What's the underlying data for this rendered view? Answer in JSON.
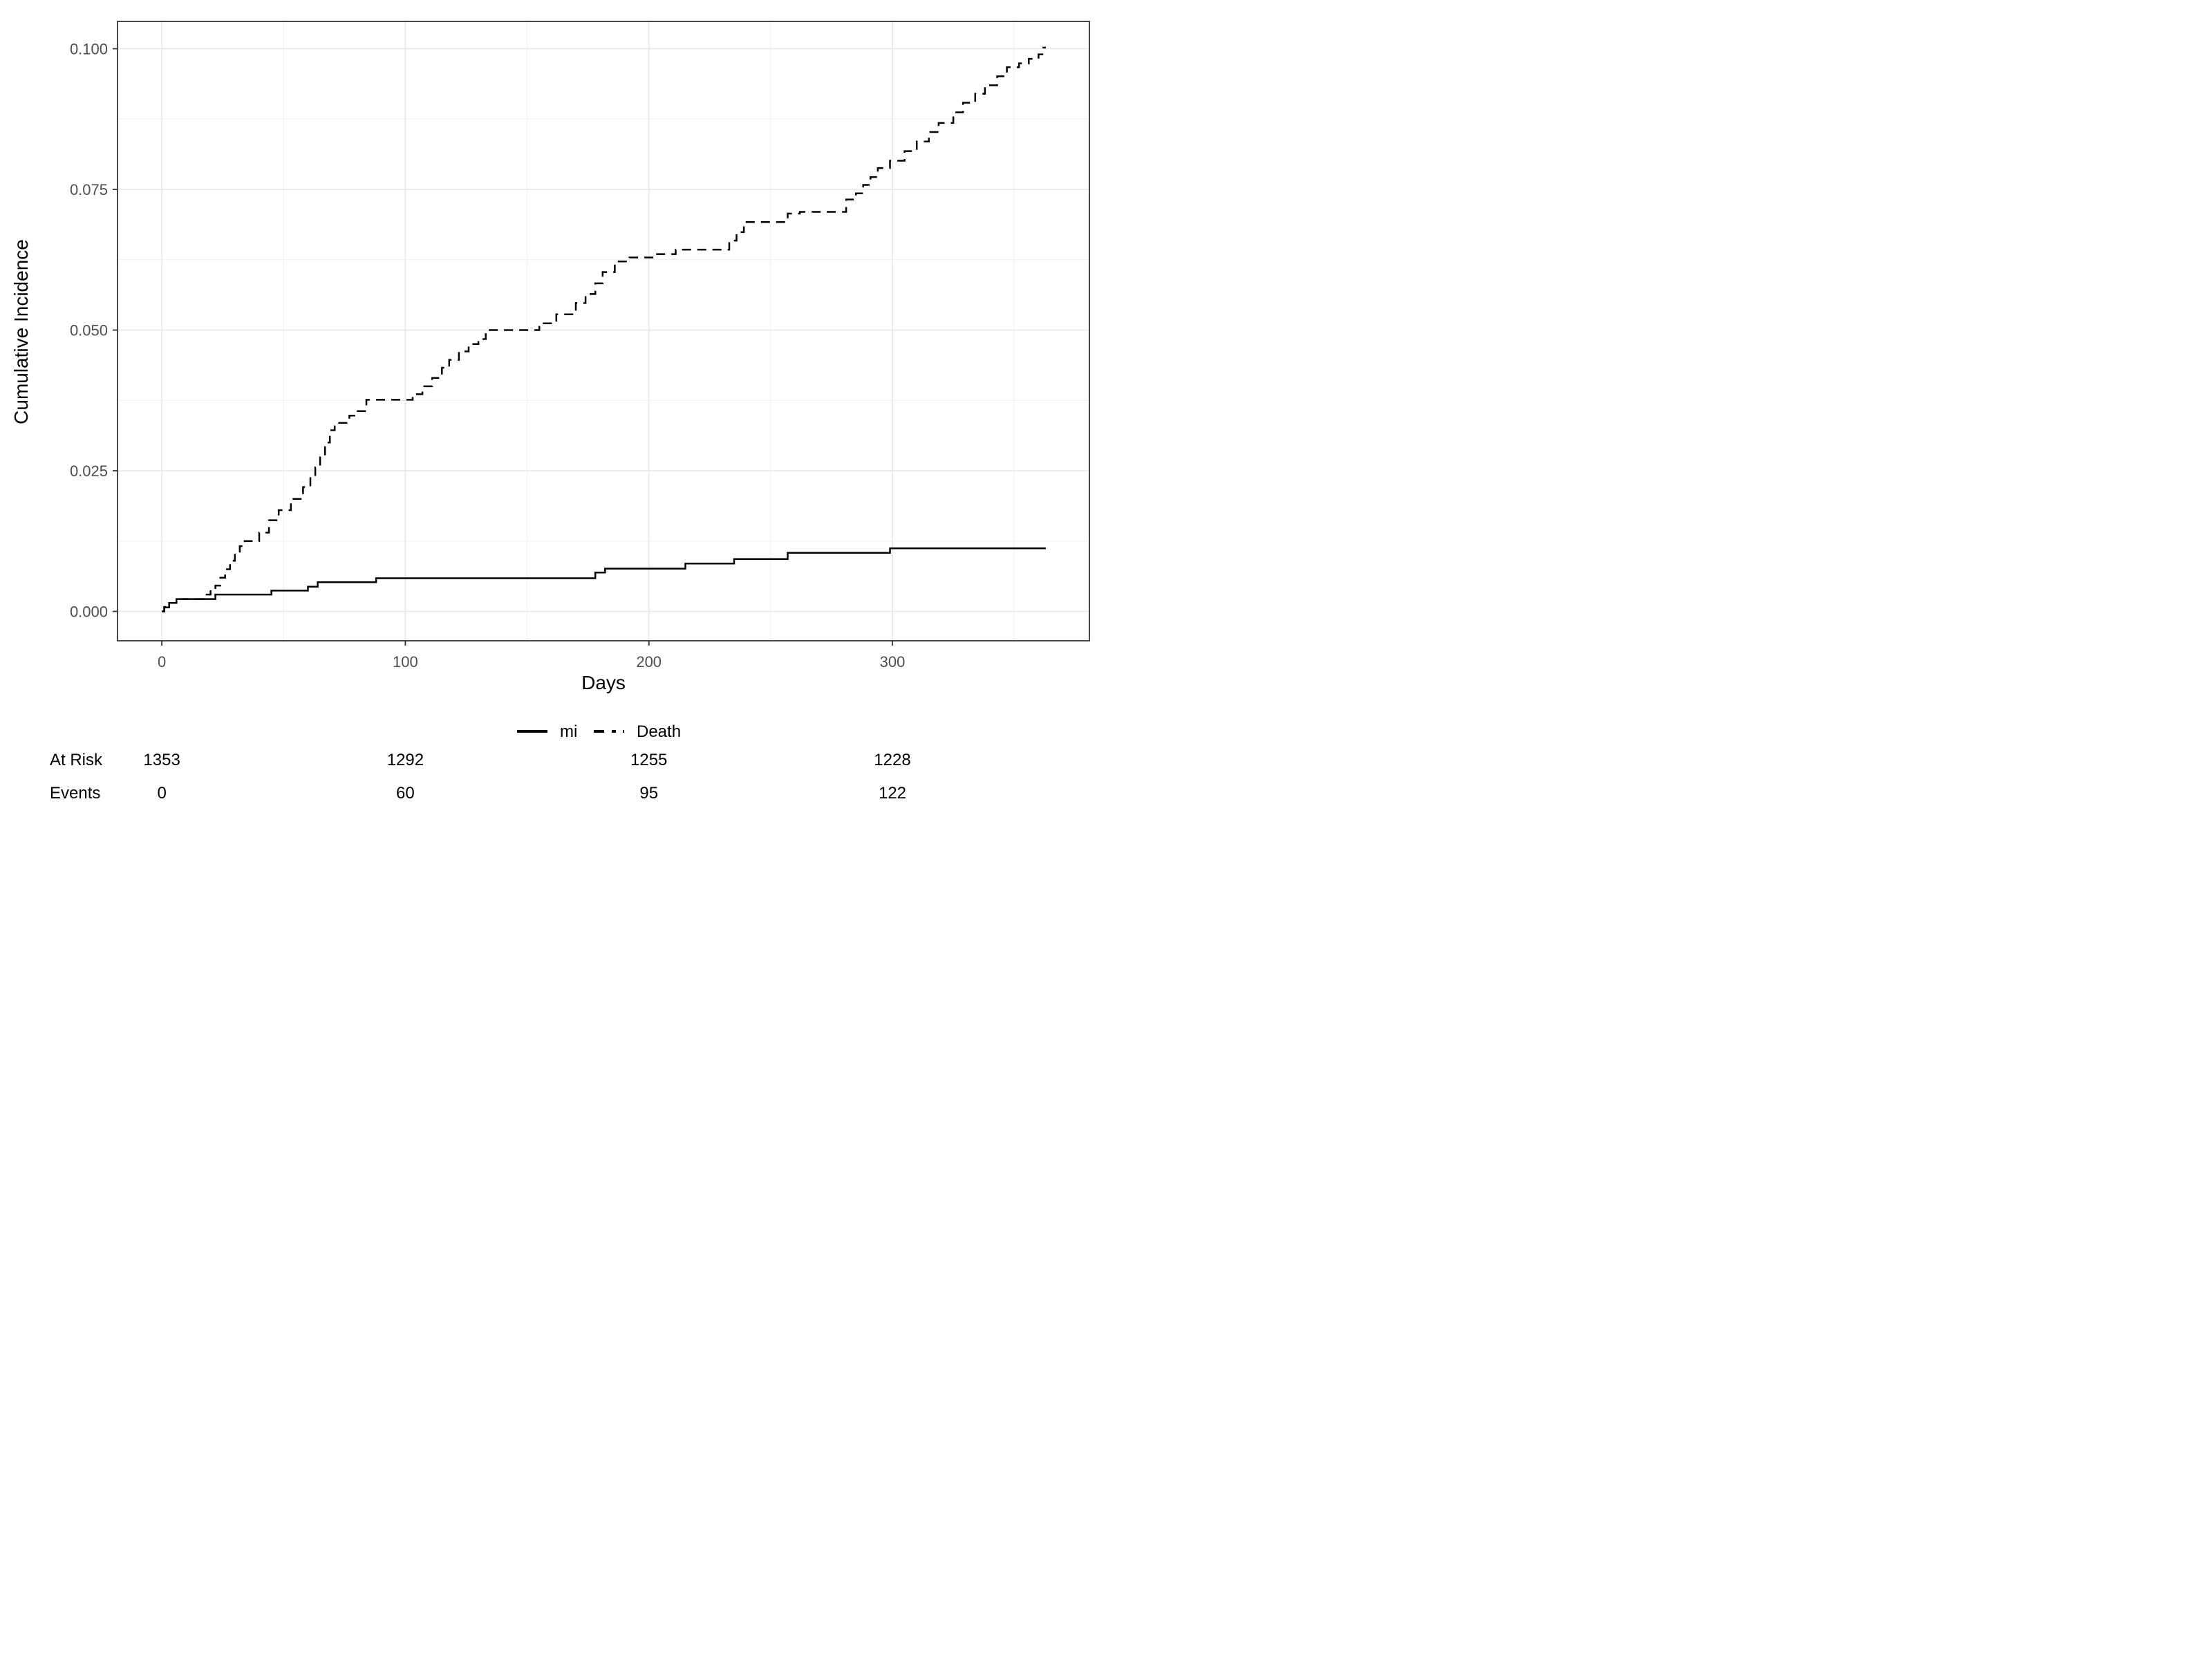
{
  "figure": {
    "y_axis_title": "Cumulative Incidence",
    "x_axis_title": "Days",
    "legend": {
      "items": [
        {
          "label": "mi",
          "linetype": "solid"
        },
        {
          "label": "Death",
          "linetype": "dashed"
        }
      ]
    },
    "risk_table": {
      "row_labels": {
        "at_risk": "At Risk",
        "events": "Events"
      },
      "times": [
        0,
        100,
        200,
        300
      ],
      "at_risk_values": [
        "1353",
        "1292",
        "1255",
        "1228"
      ],
      "events_values": [
        "0",
        "60",
        "95",
        "122"
      ]
    }
  },
  "chart_data": {
    "type": "line",
    "step": true,
    "title": "",
    "xlabel": "Days",
    "ylabel": "Cumulative Incidence",
    "x_ticks": [
      0,
      100,
      200,
      300
    ],
    "x_tick_labels": [
      "0",
      "100",
      "200",
      "300"
    ],
    "x_minor_ticks": [
      50,
      150,
      250,
      350
    ],
    "y_ticks": [
      0.0,
      0.025,
      0.05,
      0.075,
      0.1
    ],
    "y_tick_labels": [
      "0.000",
      "0.025",
      "0.050",
      "0.075",
      "0.100"
    ],
    "y_minor_ticks": [
      0.0125,
      0.0375,
      0.0625,
      0.0875
    ],
    "xlim": [
      -18.2,
      380.9
    ],
    "ylim": [
      -0.00522,
      0.10485
    ],
    "grid": true,
    "legend_position": "bottom",
    "series": [
      {
        "name": "mi",
        "linetype": "solid",
        "points": [
          [
            0,
            0
          ],
          [
            1,
            0.0007
          ],
          [
            3,
            0.0015
          ],
          [
            6,
            0.0022
          ],
          [
            22,
            0.003
          ],
          [
            45,
            0.0037
          ],
          [
            60,
            0.0044
          ],
          [
            64,
            0.0052
          ],
          [
            88,
            0.0059
          ],
          [
            178,
            0.0069
          ],
          [
            182,
            0.0076
          ],
          [
            215,
            0.0085
          ],
          [
            235,
            0.0093
          ],
          [
            257,
            0.0104
          ],
          [
            299,
            0.0112
          ],
          [
            363,
            0.0112
          ]
        ]
      },
      {
        "name": "Death",
        "linetype": "dashed",
        "points": [
          [
            0,
            0
          ],
          [
            1,
            0.0008
          ],
          [
            3,
            0.0015
          ],
          [
            6,
            0.0022
          ],
          [
            18,
            0.003
          ],
          [
            20,
            0.0038
          ],
          [
            22,
            0.0046
          ],
          [
            24,
            0.006
          ],
          [
            26,
            0.0075
          ],
          [
            28,
            0.009
          ],
          [
            30,
            0.0104
          ],
          [
            32,
            0.0116
          ],
          [
            34,
            0.0125
          ],
          [
            40,
            0.014
          ],
          [
            44,
            0.0162
          ],
          [
            48,
            0.018
          ],
          [
            53,
            0.02
          ],
          [
            58,
            0.0221
          ],
          [
            61,
            0.024
          ],
          [
            63,
            0.0256
          ],
          [
            65,
            0.0276
          ],
          [
            67,
            0.03
          ],
          [
            69,
            0.0322
          ],
          [
            71,
            0.0335
          ],
          [
            77,
            0.0348
          ],
          [
            80,
            0.0356
          ],
          [
            84,
            0.0376
          ],
          [
            103,
            0.0386
          ],
          [
            107,
            0.04
          ],
          [
            111,
            0.0415
          ],
          [
            115,
            0.0433
          ],
          [
            118,
            0.0447
          ],
          [
            122,
            0.0462
          ],
          [
            126,
            0.0475
          ],
          [
            130,
            0.0484
          ],
          [
            133,
            0.05
          ],
          [
            155,
            0.0512
          ],
          [
            162,
            0.0528
          ],
          [
            170,
            0.0548
          ],
          [
            174,
            0.0564
          ],
          [
            178,
            0.0583
          ],
          [
            181,
            0.0603
          ],
          [
            186,
            0.0622
          ],
          [
            192,
            0.0629
          ],
          [
            202,
            0.0635
          ],
          [
            211,
            0.0643
          ],
          [
            233,
            0.0659
          ],
          [
            236,
            0.0674
          ],
          [
            239,
            0.0692
          ],
          [
            257,
            0.0707
          ],
          [
            262,
            0.071
          ],
          [
            281,
            0.0732
          ],
          [
            285,
            0.0743
          ],
          [
            288,
            0.0758
          ],
          [
            291,
            0.0772
          ],
          [
            294,
            0.0788
          ],
          [
            299,
            0.0801
          ],
          [
            305,
            0.0818
          ],
          [
            310,
            0.0835
          ],
          [
            315,
            0.0852
          ],
          [
            319,
            0.0868
          ],
          [
            325,
            0.0887
          ],
          [
            329,
            0.0904
          ],
          [
            334,
            0.092
          ],
          [
            338,
            0.0935
          ],
          [
            343,
            0.0951
          ],
          [
            347,
            0.0967
          ],
          [
            352,
            0.0974
          ],
          [
            356,
            0.0982
          ],
          [
            360,
            0.099
          ],
          [
            362,
            0.1002
          ],
          [
            363,
            0.1002
          ]
        ]
      }
    ]
  },
  "colors": {
    "line": "#000000",
    "grid_major": "#e8e8e8",
    "grid_minor": "#f2f2f2",
    "panel_border": "#333333",
    "tick_mark": "#333333",
    "tick_text": "#4d4d4d",
    "title_text": "#000000",
    "background": "#ffffff"
  }
}
